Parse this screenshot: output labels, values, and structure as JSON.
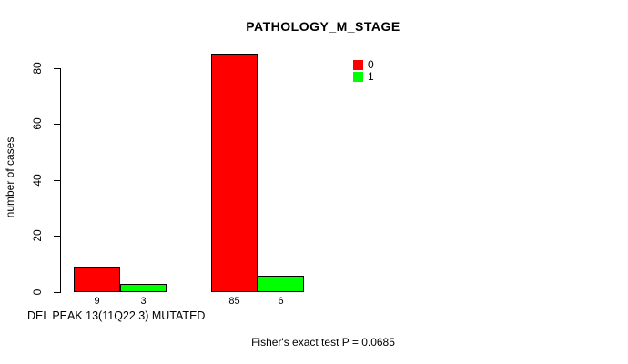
{
  "title": "PATHOLOGY_M_STAGE",
  "footnote": "Fisher's exact test P = 0.0685",
  "chart_data": {
    "type": "bar",
    "title": "PATHOLOGY_M_STAGE",
    "xlabel": "DEL PEAK 13(11Q22.3) MUTATED",
    "ylabel": "number of cases",
    "ylim": [
      0,
      85
    ],
    "yticks": [
      0,
      20,
      40,
      60,
      80
    ],
    "grid": false,
    "legend_position": "top-right",
    "groups": [
      {
        "bars": [
          {
            "series": "0",
            "value": 9,
            "label": "9",
            "color": "#ff0000"
          },
          {
            "series": "1",
            "value": 3,
            "label": "3",
            "color": "#00ff00"
          }
        ]
      },
      {
        "bars": [
          {
            "series": "0",
            "value": 85,
            "label": "85",
            "color": "#ff0000"
          },
          {
            "series": "1",
            "value": 6,
            "label": "6",
            "color": "#00ff00"
          }
        ]
      }
    ],
    "legend": [
      {
        "label": "0",
        "color": "#ff0000"
      },
      {
        "label": "1",
        "color": "#00ff00"
      }
    ],
    "annotation": "Fisher's exact test P = 0.0685"
  }
}
